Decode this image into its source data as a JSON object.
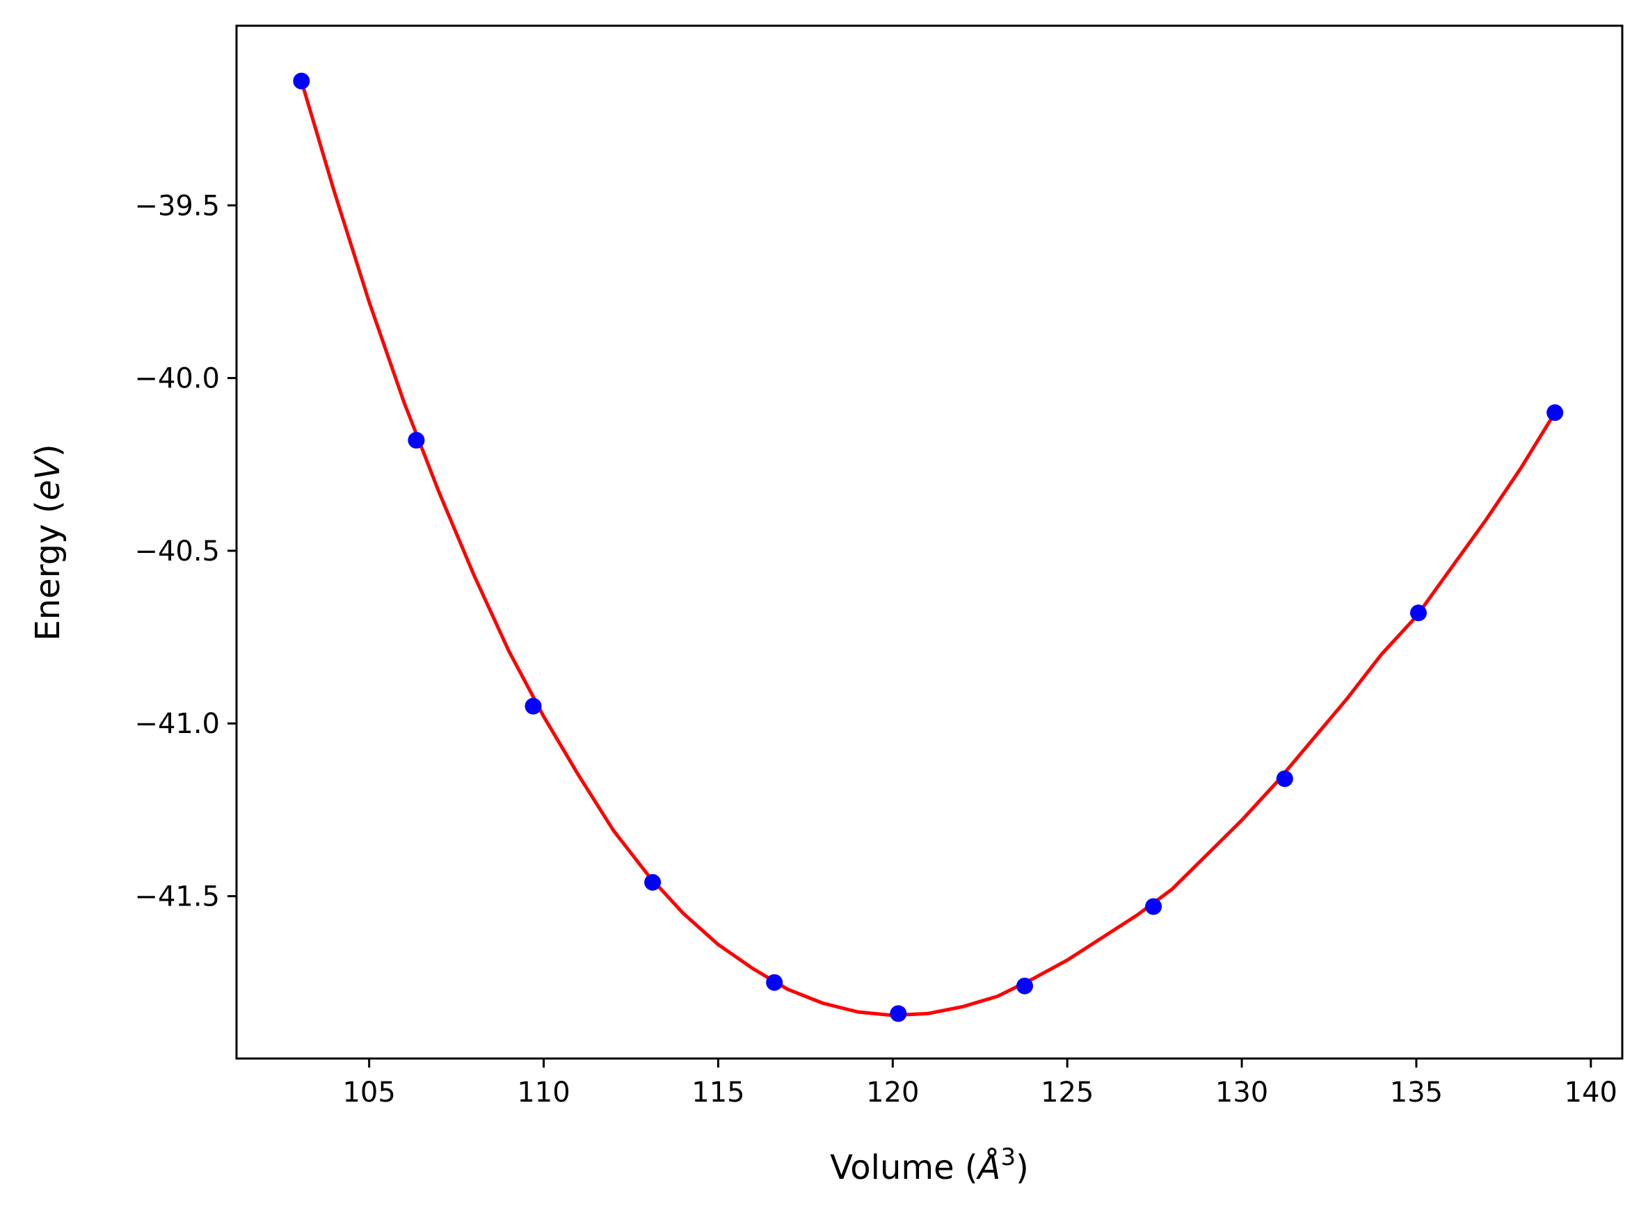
{
  "chart_data": {
    "type": "scatter",
    "title": "",
    "xlabel": "Volume (",
    "xlabel_symbol": "Å",
    "xlabel_exponent": "3",
    "xlabel_close": ")",
    "ylabel": "Energy (",
    "ylabel_unit": "eV",
    "ylabel_close": ")",
    "xlim": [
      101.2,
      140.9
    ],
    "ylim": [
      -41.97,
      -38.98
    ],
    "xticks": [
      105,
      110,
      115,
      120,
      125,
      130,
      135,
      140
    ],
    "xtick_labels": [
      "105",
      "110",
      "115",
      "120",
      "125",
      "130",
      "135",
      "140"
    ],
    "yticks": [
      -39.5,
      -40.0,
      -40.5,
      -41.0,
      -41.5
    ],
    "ytick_labels": [
      "−39.5",
      "−40.0",
      "−40.5",
      "−41.0",
      "−41.5"
    ],
    "grid": false,
    "series": [
      {
        "kind": "points",
        "color": "#0000ff",
        "x": [
          103.06,
          106.35,
          109.7,
          113.12,
          116.61,
          120.16,
          123.78,
          127.47,
          131.23,
          135.06,
          138.97
        ],
        "y": [
          -39.14,
          -40.18,
          -40.95,
          -41.46,
          -41.75,
          -41.84,
          -41.76,
          -41.53,
          -41.16,
          -40.68,
          -40.1
        ]
      },
      {
        "kind": "fit-curve",
        "color": "#ff0000",
        "x": [
          103.06,
          104.0,
          105.0,
          106.0,
          107.0,
          108.0,
          109.0,
          110.0,
          111.0,
          112.0,
          113.0,
          114.0,
          115.0,
          116.0,
          117.0,
          118.0,
          119.0,
          120.0,
          121.0,
          122.0,
          123.0,
          124.0,
          125.0,
          126.0,
          127.0,
          128.0,
          129.0,
          130.0,
          131.0,
          132.0,
          133.0,
          134.0,
          135.0,
          136.0,
          137.0,
          138.0,
          138.97
        ],
        "y": [
          -39.14,
          -39.46,
          -39.78,
          -40.07,
          -40.33,
          -40.57,
          -40.79,
          -40.98,
          -41.15,
          -41.31,
          -41.44,
          -41.55,
          -41.64,
          -41.71,
          -41.77,
          -41.81,
          -41.835,
          -41.845,
          -41.84,
          -41.82,
          -41.79,
          -41.74,
          -41.685,
          -41.62,
          -41.555,
          -41.48,
          -41.38,
          -41.28,
          -41.17,
          -41.05,
          -40.93,
          -40.8,
          -40.69,
          -40.55,
          -40.41,
          -40.26,
          -40.1
        ]
      }
    ]
  }
}
